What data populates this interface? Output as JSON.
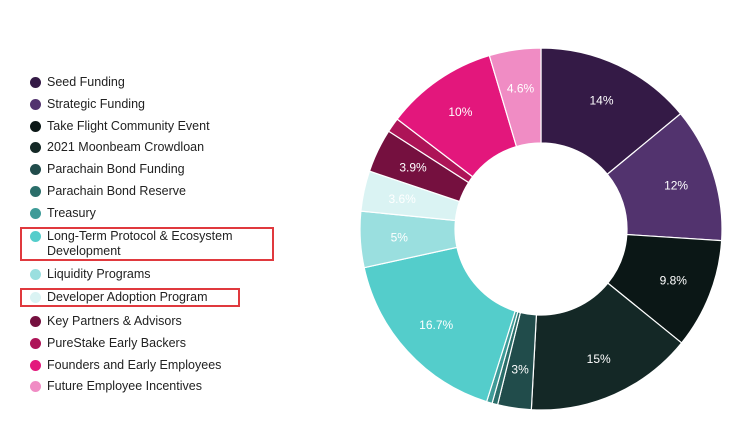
{
  "chart_data": {
    "type": "pie",
    "donut": true,
    "title": "",
    "legend_position": "left",
    "categories": [
      "Seed Funding",
      "Strategic Funding",
      "Take Flight Community Event",
      "2021 Moonbeam Crowdloan",
      "Parachain Bond Funding",
      "Parachain Bond Reserve",
      "Treasury",
      "Long-Term Protocol & Ecosystem Development",
      "Liquidity Programs",
      "Developer Adoption Program",
      "Key Partners & Advisors",
      "PureStake Early Backers",
      "Founders and Early Employees",
      "Future Employee Incentives"
    ],
    "values": [
      14,
      12,
      9.8,
      15,
      3,
      0.5,
      0.5,
      16.7,
      5,
      3.6,
      3.9,
      1.3,
      10,
      4.6
    ],
    "data_labels": [
      "14%",
      "12%",
      "9.8%",
      "15%",
      "3%",
      "",
      "",
      "16.7%",
      "5%",
      "3.6%",
      "3.9%",
      "",
      "10%",
      "4.6%"
    ],
    "colors": [
      "#341a46",
      "#52336e",
      "#0b1716",
      "#142826",
      "#214c4b",
      "#2b6e6a",
      "#3e9b98",
      "#54cdcb",
      "#9adfdf",
      "#daf3f3",
      "#75103f",
      "#ad1457",
      "#e3177c",
      "#f08cc4"
    ],
    "label_colors": [
      "#ffffff",
      "#ffffff",
      "#ffffff",
      "#ffffff",
      "#ffffff",
      "#ffffff",
      "#ffffff",
      "#ffffff",
      "#ffffff",
      "#9fd3d3",
      "#ffffff",
      "#ffffff",
      "#ffffff",
      "#ffffff"
    ]
  }
}
